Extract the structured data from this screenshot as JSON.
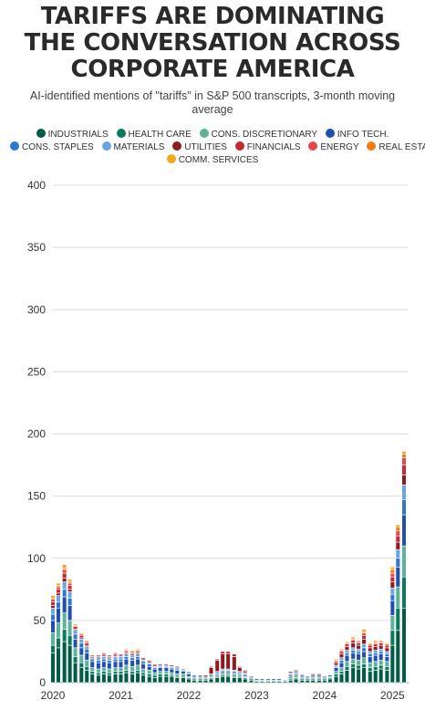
{
  "chart_data": {
    "type": "bar",
    "stacked": true,
    "title": [
      "TARIFFS ARE DOMINATING",
      "THE CONVERSATION ACROSS",
      "CORPORATE AMERICA"
    ],
    "subtitle": "AI-identified mentions of \"tariffs\" in S&P 500 transcripts, 3-month moving average",
    "ylim": [
      0,
      400
    ],
    "yticks": [
      0,
      50,
      100,
      150,
      200,
      250,
      300,
      350,
      400
    ],
    "x_range": [
      2020,
      2025.17
    ],
    "xticks": [
      2020,
      2021,
      2022,
      2023,
      2024,
      2025
    ],
    "grid": true,
    "legend_position": "top",
    "series": [
      {
        "name": "INDUSTRIALS",
        "color": "#005c45"
      },
      {
        "name": "HEALTH CARE",
        "color": "#0a7a5c"
      },
      {
        "name": "CONS. DISCRETIONARY",
        "color": "#5bb39a"
      },
      {
        "name": "INFO TECH.",
        "color": "#1f4fb0"
      },
      {
        "name": "CONS. STAPLES",
        "color": "#2f76d2"
      },
      {
        "name": "MATERIALS",
        "color": "#6aa5e3"
      },
      {
        "name": "UTILITIES",
        "color": "#8f1b1f"
      },
      {
        "name": "FINANCIALS",
        "color": "#c42a31"
      },
      {
        "name": "ENERGY",
        "color": "#e5484d"
      },
      {
        "name": "REAL ESTATE",
        "color": "#ef7f13"
      },
      {
        "name": "COMM. SERVICES",
        "color": "#f5a81c"
      }
    ],
    "x": [
      2020.0,
      2020.08,
      2020.17,
      2020.25,
      2020.33,
      2020.42,
      2020.5,
      2020.58,
      2020.67,
      2020.75,
      2020.83,
      2020.92,
      2021.0,
      2021.08,
      2021.17,
      2021.25,
      2021.33,
      2021.42,
      2021.5,
      2021.58,
      2021.67,
      2021.75,
      2021.83,
      2021.92,
      2022.0,
      2022.08,
      2022.17,
      2022.25,
      2022.33,
      2022.42,
      2022.5,
      2022.58,
      2022.67,
      2022.75,
      2022.83,
      2022.92,
      2023.0,
      2023.08,
      2023.17,
      2023.25,
      2023.33,
      2023.42,
      2023.5,
      2023.58,
      2023.67,
      2023.75,
      2023.83,
      2023.92,
      2024.0,
      2024.08,
      2024.17,
      2024.25,
      2024.33,
      2024.42,
      2024.5,
      2024.58,
      2024.67,
      2024.75,
      2024.83,
      2024.92,
      2025.0,
      2025.08,
      2025.17
    ],
    "stacks": [
      [
        24,
        6,
        10,
        10,
        5,
        5,
        2,
        3,
        2,
        1,
        2
      ],
      [
        28,
        8,
        12,
        12,
        5,
        5,
        2,
        3,
        2,
        1,
        2
      ],
      [
        33,
        10,
        13,
        13,
        6,
        6,
        3,
        4,
        3,
        1,
        3
      ],
      [
        30,
        8,
        12,
        12,
        6,
        5,
        2,
        3,
        2,
        1,
        2
      ],
      [
        16,
        5,
        7,
        7,
        4,
        3,
        1,
        2,
        1,
        0,
        1
      ],
      [
        12,
        4,
        6,
        6,
        4,
        3,
        1,
        2,
        1,
        0,
        1
      ],
      [
        10,
        3,
        5,
        6,
        3,
        2,
        1,
        2,
        1,
        0,
        1
      ],
      [
        7,
        2,
        3,
        5,
        2,
        1,
        1,
        1,
        0,
        0,
        0
      ],
      [
        6,
        2,
        3,
        5,
        2,
        2,
        1,
        1,
        0,
        0,
        0
      ],
      [
        7,
        2,
        3,
        5,
        2,
        2,
        1,
        1,
        1,
        0,
        0
      ],
      [
        6,
        2,
        3,
        5,
        2,
        2,
        1,
        1,
        0,
        0,
        0
      ],
      [
        7,
        2,
        3,
        5,
        2,
        2,
        1,
        1,
        1,
        0,
        0
      ],
      [
        7,
        2,
        3,
        5,
        2,
        2,
        1,
        1,
        0,
        0,
        0
      ],
      [
        8,
        2,
        4,
        5,
        2,
        2,
        1,
        1,
        1,
        0,
        1
      ],
      [
        7,
        2,
        4,
        5,
        2,
        2,
        1,
        1,
        1,
        0,
        1
      ],
      [
        8,
        2,
        4,
        5,
        2,
        2,
        1,
        1,
        1,
        0,
        1
      ],
      [
        6,
        2,
        3,
        4,
        2,
        1,
        1,
        1,
        0,
        0,
        0
      ],
      [
        5,
        2,
        3,
        3,
        2,
        1,
        1,
        1,
        0,
        0,
        0
      ],
      [
        4,
        2,
        2,
        3,
        1,
        1,
        1,
        1,
        0,
        0,
        0
      ],
      [
        5,
        2,
        2,
        3,
        1,
        1,
        1,
        0,
        0,
        0,
        0
      ],
      [
        5,
        2,
        2,
        3,
        1,
        1,
        1,
        0,
        0,
        0,
        0
      ],
      [
        5,
        1,
        2,
        3,
        1,
        1,
        1,
        0,
        0,
        0,
        0
      ],
      [
        4,
        1,
        2,
        3,
        1,
        1,
        1,
        0,
        0,
        0,
        0
      ],
      [
        4,
        1,
        2,
        2,
        1,
        1,
        0,
        0,
        0,
        0,
        0
      ],
      [
        3,
        1,
        1,
        2,
        1,
        1,
        0,
        0,
        0,
        0,
        0
      ],
      [
        2,
        1,
        1,
        1,
        1,
        0,
        0,
        0,
        0,
        0,
        0
      ],
      [
        2,
        1,
        1,
        1,
        1,
        0,
        0,
        0,
        0,
        0,
        0
      ],
      [
        2,
        1,
        1,
        1,
        0,
        0,
        1,
        0,
        0,
        0,
        0
      ],
      [
        3,
        1,
        1,
        1,
        1,
        0,
        5,
        1,
        0,
        0,
        0
      ],
      [
        4,
        1,
        1,
        1,
        1,
        1,
        9,
        1,
        0,
        0,
        0
      ],
      [
        5,
        1,
        2,
        1,
        1,
        1,
        12,
        2,
        0,
        0,
        0
      ],
      [
        5,
        1,
        2,
        1,
        1,
        1,
        12,
        2,
        0,
        0,
        0
      ],
      [
        4,
        1,
        2,
        1,
        1,
        1,
        11,
        2,
        0,
        0,
        0
      ],
      [
        4,
        1,
        1,
        1,
        1,
        1,
        3,
        1,
        0,
        0,
        0
      ],
      [
        3,
        1,
        1,
        1,
        1,
        1,
        1,
        1,
        0,
        0,
        0
      ],
      [
        2,
        1,
        1,
        1,
        0,
        0,
        0,
        0,
        0,
        0,
        0
      ],
      [
        1,
        0,
        1,
        1,
        0,
        0,
        0,
        0,
        0,
        0,
        0
      ],
      [
        1,
        0,
        1,
        1,
        0,
        0,
        0,
        0,
        0,
        0,
        0
      ],
      [
        1,
        0,
        1,
        1,
        0,
        0,
        0,
        0,
        0,
        0,
        0
      ],
      [
        1,
        0,
        1,
        1,
        0,
        0,
        0,
        0,
        0,
        0,
        0
      ],
      [
        1,
        0,
        1,
        1,
        0,
        0,
        0,
        0,
        0,
        0,
        0
      ],
      [
        1,
        0,
        1,
        0,
        0,
        0,
        0,
        0,
        0,
        0,
        0
      ],
      [
        2,
        1,
        2,
        1,
        1,
        1,
        1,
        0,
        0,
        0,
        0
      ],
      [
        3,
        1,
        2,
        1,
        1,
        1,
        1,
        0,
        0,
        0,
        0
      ],
      [
        2,
        1,
        1,
        1,
        1,
        1,
        0,
        0,
        0,
        0,
        0
      ],
      [
        2,
        1,
        1,
        1,
        0,
        0,
        0,
        0,
        0,
        0,
        0
      ],
      [
        2,
        1,
        1,
        1,
        1,
        0,
        1,
        0,
        0,
        0,
        0
      ],
      [
        2,
        1,
        1,
        1,
        1,
        0,
        1,
        0,
        0,
        0,
        0
      ],
      [
        2,
        1,
        1,
        1,
        0,
        0,
        0,
        0,
        0,
        0,
        0
      ],
      [
        3,
        1,
        1,
        1,
        0,
        0,
        0,
        0,
        0,
        0,
        0
      ],
      [
        5,
        2,
        2,
        3,
        1,
        1,
        2,
        1,
        1,
        0,
        1
      ],
      [
        7,
        2,
        3,
        4,
        2,
        2,
        3,
        2,
        1,
        0,
        1
      ],
      [
        10,
        3,
        4,
        5,
        2,
        2,
        3,
        2,
        1,
        0,
        1
      ],
      [
        12,
        3,
        4,
        5,
        2,
        2,
        4,
        2,
        1,
        1,
        1
      ],
      [
        11,
        3,
        4,
        5,
        2,
        2,
        3,
        2,
        1,
        0,
        1
      ],
      [
        12,
        3,
        5,
        5,
        3,
        3,
        4,
        3,
        2,
        1,
        2
      ],
      [
        9,
        3,
        4,
        5,
        2,
        2,
        3,
        2,
        1,
        0,
        1
      ],
      [
        10,
        3,
        4,
        5,
        2,
        2,
        3,
        2,
        1,
        1,
        1
      ],
      [
        11,
        3,
        4,
        5,
        2,
        2,
        3,
        2,
        1,
        0,
        1
      ],
      [
        10,
        3,
        4,
        4,
        2,
        2,
        3,
        2,
        1,
        0,
        1
      ],
      [
        30,
        12,
        12,
        12,
        5,
        5,
        5,
        4,
        3,
        3,
        2
      ],
      [
        42,
        18,
        17,
        16,
        7,
        7,
        6,
        5,
        4,
        3,
        2
      ],
      [
        60,
        25,
        25,
        25,
        12,
        12,
        8,
        8,
        6,
        3,
        2
      ]
    ]
  }
}
